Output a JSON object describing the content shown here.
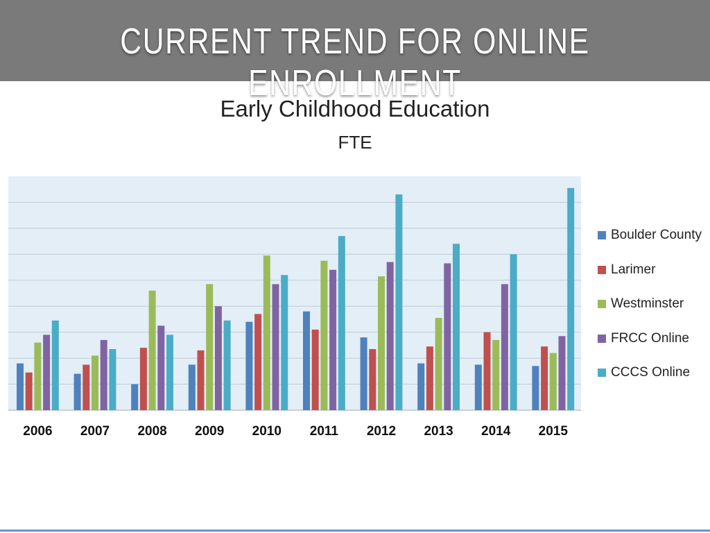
{
  "slide": {
    "title": "CURRENT TREND FOR ONLINE ENROLLMENT"
  },
  "chart_data": {
    "type": "bar",
    "title": "Early Childhood Education",
    "subtitle": "FTE",
    "categories": [
      "2006",
      "2007",
      "2008",
      "2009",
      "2010",
      "2011",
      "2012",
      "2013",
      "2014",
      "2015"
    ],
    "series": [
      {
        "name": "Boulder County",
        "color": "#4f81bd",
        "values": [
          1.8,
          1.4,
          1.0,
          1.75,
          3.4,
          3.8,
          2.8,
          1.8,
          1.75,
          1.7
        ]
      },
      {
        "name": "Larimer",
        "color": "#c0504d",
        "values": [
          1.45,
          1.75,
          2.4,
          2.3,
          3.7,
          3.1,
          2.35,
          2.45,
          3.0,
          2.45
        ]
      },
      {
        "name": "Westminster",
        "color": "#9bbb59",
        "values": [
          2.6,
          2.1,
          4.6,
          4.85,
          5.95,
          5.75,
          5.15,
          3.55,
          2.7,
          2.2
        ]
      },
      {
        "name": "FRCC Online",
        "color": "#8064a2",
        "values": [
          2.9,
          2.7,
          3.25,
          4.0,
          4.85,
          5.4,
          5.7,
          5.65,
          4.85,
          2.85
        ]
      },
      {
        "name": "CCCS Online",
        "color": "#4bacc6",
        "values": [
          3.45,
          2.35,
          2.9,
          3.45,
          5.2,
          6.7,
          8.3,
          6.4,
          6.0,
          8.55
        ]
      }
    ],
    "ylim": [
      0,
      9
    ],
    "grid": true,
    "legend": "right"
  }
}
